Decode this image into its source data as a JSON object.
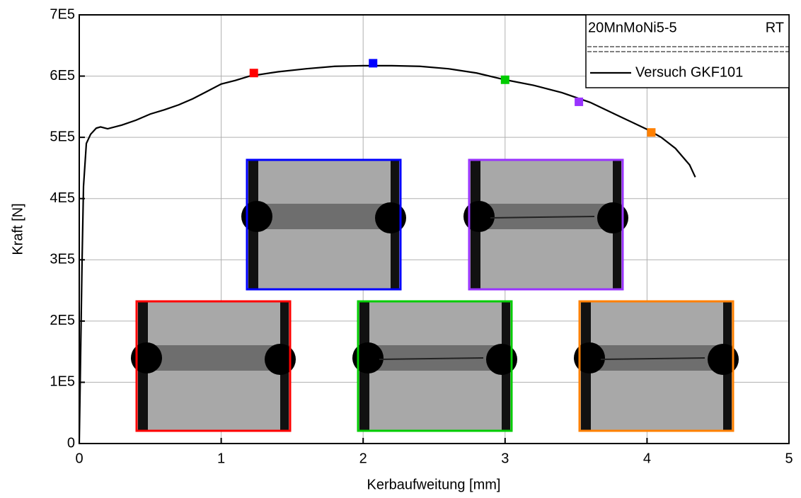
{
  "chart_data": {
    "type": "line",
    "xlabel": "Kerbaufweitung [mm]",
    "ylabel": "Kraft [N]",
    "xlim": [
      0,
      5
    ],
    "ylim": [
      0,
      700000
    ],
    "xticks": [
      0,
      1,
      2,
      3,
      4,
      5
    ],
    "yticks": [
      0,
      {
        "value": 100000,
        "label": "1E5"
      },
      {
        "value": 200000,
        "label": "2E5"
      },
      {
        "value": 300000,
        "label": "3E5"
      },
      {
        "value": 400000,
        "label": "4E5"
      },
      {
        "value": 500000,
        "label": "5E5"
      },
      {
        "value": 600000,
        "label": "6E5"
      },
      {
        "value": 700000,
        "label": "7E5"
      }
    ],
    "grid": true,
    "legend": {
      "title": "20MnMoNi5-5",
      "condition": "RT"
    },
    "series": [
      {
        "name": "Versuch GKF101",
        "color": "#000000",
        "x": [
          0,
          0.01,
          0.02,
          0.03,
          0.05,
          0.08,
          0.12,
          0.15,
          0.2,
          0.3,
          0.4,
          0.5,
          0.6,
          0.7,
          0.8,
          0.9,
          1.0,
          1.1,
          1.2,
          1.4,
          1.6,
          1.8,
          2.0,
          2.2,
          2.4,
          2.6,
          2.8,
          3.0,
          3.2,
          3.4,
          3.6,
          3.8,
          4.0,
          4.1,
          4.2,
          4.3,
          4.34
        ],
        "values": [
          0,
          150000,
          300000,
          420000,
          490000,
          505000,
          515000,
          517000,
          514000,
          520000,
          528000,
          538000,
          545000,
          553000,
          563000,
          575000,
          587000,
          593000,
          600000,
          607000,
          612000,
          616000,
          617000,
          617000,
          616000,
          612000,
          605000,
          594000,
          585000,
          573000,
          557000,
          535000,
          513000,
          500000,
          482000,
          455000,
          435000
        ]
      }
    ],
    "markers": {
      "x": [
        1.23,
        2.07,
        3.0,
        3.52,
        4.03
      ],
      "values": [
        605000,
        621000,
        594000,
        558000,
        508000
      ],
      "colors": [
        "#ff0000",
        "#0000ff",
        "#00cc00",
        "#9933ff",
        "#ff8000"
      ]
    }
  }
}
